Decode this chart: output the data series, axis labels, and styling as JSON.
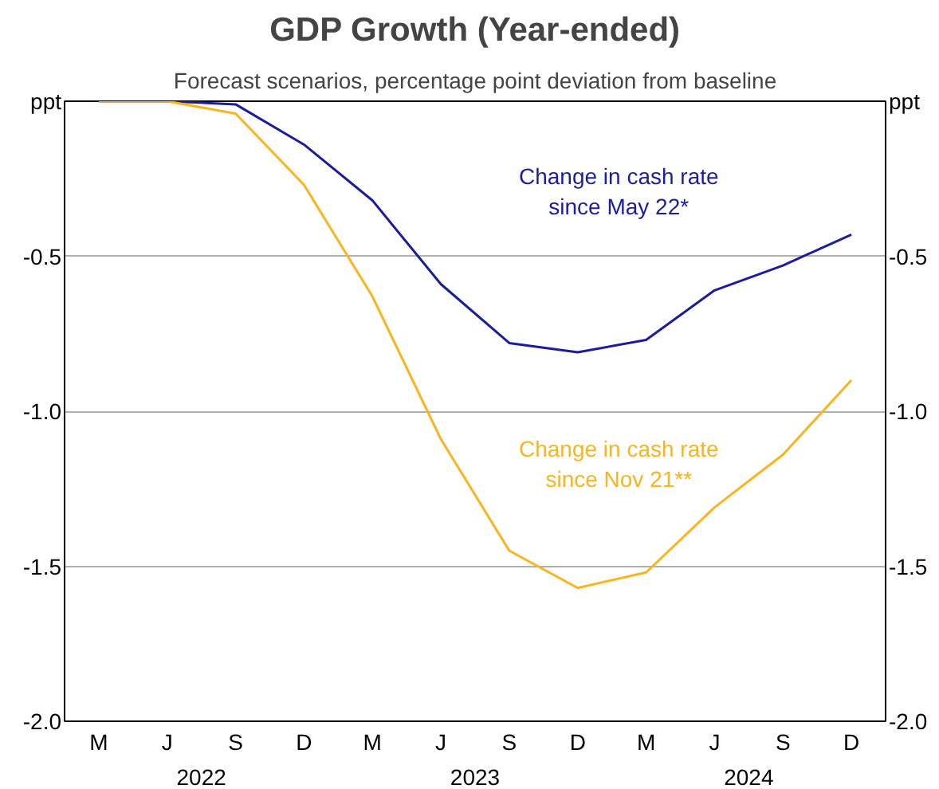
{
  "chart_data": {
    "type": "line",
    "title": "GDP Growth (Year-ended)",
    "subtitle": "Forecast scenarios, percentage point deviation from baseline",
    "ylabel": "ppt",
    "y2label": "ppt",
    "categories": [
      "M",
      "J",
      "S",
      "D",
      "M",
      "J",
      "S",
      "D",
      "M",
      "J",
      "S",
      "D"
    ],
    "annotations": [
      "2022",
      "2023",
      "2024"
    ],
    "series": [
      {
        "name": "Change in cash rate\nsince May 22*",
        "color": "#1c1c9e",
        "values": [
          0,
          0,
          -0.01,
          -0.14,
          -0.32,
          -0.59,
          -0.78,
          -0.81,
          -0.77,
          -0.61,
          -0.53,
          -0.43
        ]
      },
      {
        "name": "Change in cash rate\nsince Nov 21**",
        "color": "#fbb41c",
        "values": [
          0,
          0,
          -0.04,
          -0.27,
          -0.63,
          -1.09,
          -1.45,
          -1.57,
          -1.52,
          -1.31,
          -1.14,
          -0.9
        ]
      }
    ],
    "ylim": [
      -2.0,
      0
    ],
    "yticks": [
      {
        "value": -2.0,
        "label": "-2.0"
      },
      {
        "value": -1.5,
        "label": "-1.5"
      },
      {
        "value": -1.0,
        "label": "-1.0"
      },
      {
        "value": -0.5,
        "label": "-0.5"
      }
    ],
    "y2lim": [
      -2.0,
      0
    ],
    "y2ticks": [
      {
        "value": -2.0,
        "label": "-2.0"
      },
      {
        "value": -1.5,
        "label": "-1.5"
      },
      {
        "value": -1.0,
        "label": "-1.0"
      },
      {
        "value": -0.5,
        "label": "-0.5"
      }
    ],
    "grid": "y",
    "legend": false,
    "line_style": "solid",
    "marker": "none"
  }
}
